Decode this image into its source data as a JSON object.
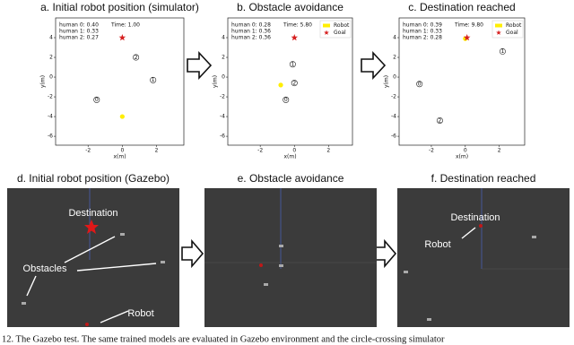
{
  "chart_data": [
    {
      "type": "scatter",
      "title": "a. Initial robot position (simulator)",
      "xlabel": "x(m)",
      "ylabel": "y(m)",
      "xlim": [
        -3.9,
        3.6
      ],
      "ylim": [
        -6.9,
        6
      ],
      "xticks": [
        -2,
        0,
        2
      ],
      "yticks": [
        -6,
        -4,
        -2,
        0,
        2,
        4
      ],
      "annotations": [
        "human 0: 0.40",
        "human 1: 0.33",
        "human 2: 0.27"
      ],
      "time": "Time: 1.00",
      "series": [
        {
          "marker": "circle",
          "color": "#ffee00",
          "x": [
            0
          ],
          "y": [
            -4
          ]
        },
        {
          "marker": "star",
          "color": "#d62020",
          "x": [
            0
          ],
          "y": [
            4
          ]
        },
        {
          "marker": "ring",
          "color": "#222222",
          "x": [
            -1.5,
            1.8,
            0.8
          ],
          "y": [
            -2.3,
            -0.3,
            2.0
          ],
          "point_labels": [
            "0",
            "1",
            "2"
          ]
        }
      ]
    },
    {
      "type": "scatter",
      "title": "b. Obstacle avoidance",
      "xlabel": "x(m)",
      "ylabel": "y(m)",
      "xlim": [
        -3.9,
        3.4
      ],
      "ylim": [
        -6.9,
        6
      ],
      "xticks": [
        -2,
        0,
        2
      ],
      "yticks": [
        -6,
        -4,
        -2,
        0,
        2,
        4
      ],
      "annotations": [
        "human 0: 0.28",
        "human 1: 0.36",
        "human 2: 0.36"
      ],
      "time": "Time: 5.80",
      "legend": "upper right",
      "series": [
        {
          "name": "Robot",
          "marker": "circle",
          "color": "#ffee00",
          "x": [
            -0.8
          ],
          "y": [
            -0.8
          ]
        },
        {
          "name": "Goal",
          "marker": "star",
          "color": "#d62020",
          "x": [
            0
          ],
          "y": [
            4
          ]
        },
        {
          "marker": "ring",
          "color": "#222222",
          "x": [
            -0.5,
            -0.1,
            0
          ],
          "y": [
            -2.3,
            1.3,
            -0.6
          ],
          "point_labels": [
            "0",
            "1",
            "2"
          ]
        }
      ]
    },
    {
      "type": "scatter",
      "title": "c. Destination reached",
      "xlabel": "x(m)",
      "ylabel": "y(m)",
      "xlim": [
        -3.9,
        3.5
      ],
      "ylim": [
        -6.9,
        6
      ],
      "xticks": [
        -2,
        0,
        2
      ],
      "yticks": [
        -6,
        -4,
        -2,
        0,
        2,
        4
      ],
      "annotations": [
        "human 0: 0.39",
        "human 1: 0.33",
        "human 2: 0.28"
      ],
      "time": "Time: 9.80",
      "legend": "upper right",
      "series": [
        {
          "name": "Robot",
          "marker": "circle",
          "color": "#ffee00",
          "x": [
            0
          ],
          "y": [
            3.9
          ]
        },
        {
          "name": "Goal",
          "marker": "star",
          "color": "#d62020",
          "x": [
            0.1
          ],
          "y": [
            4
          ]
        },
        {
          "marker": "ring",
          "color": "#222222",
          "x": [
            -2.7,
            2.2,
            -1.5
          ],
          "y": [
            -0.7,
            2.6,
            -4.4
          ],
          "point_labels": [
            "0",
            "1",
            "2"
          ]
        }
      ]
    }
  ],
  "screenshots": [
    {
      "title": "d. Initial robot position (Gazebo)",
      "labels": [
        "Destination",
        "Obstacles",
        "Robot"
      ]
    },
    {
      "title": "e. Obstacle avoidance",
      "labels": []
    },
    {
      "title": "f. Destination reached",
      "labels": [
        "Destination",
        "Robot"
      ]
    }
  ],
  "caption": "12. The Gazebo test. The same trained models are evaluated in Gazebo environment and the circle-crossing simulator"
}
